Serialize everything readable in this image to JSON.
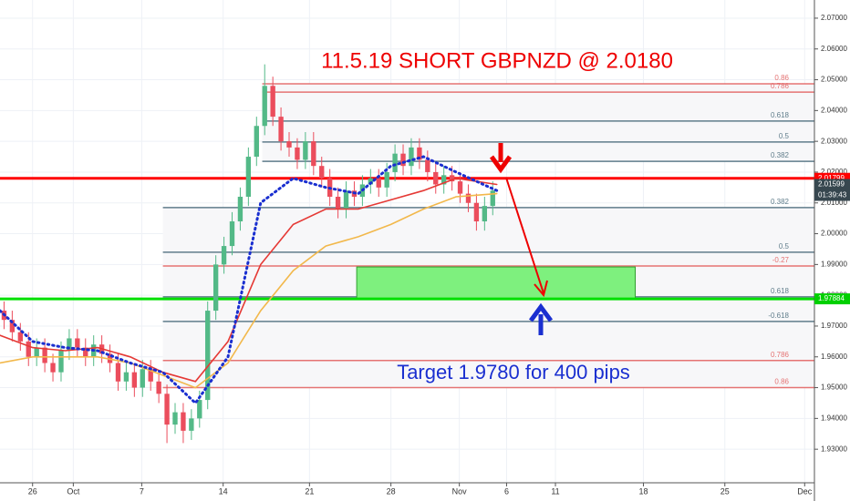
{
  "chart_data": {
    "type": "candlestick",
    "title": "11.5.19 SHORT GBPNZD @ 2.0180",
    "annotation": "Target 1.9780 for 400 pips",
    "up_color": "#53b987",
    "down_color": "#eb4d5c",
    "x": [
      0.25,
      0.75,
      1.25,
      1.75,
      2.25,
      2.75,
      3.25,
      3.75,
      4.25,
      4.75,
      5.25,
      5.75,
      6.25,
      6.75,
      7.25,
      7.75,
      8.25,
      8.75,
      9.25,
      9.75,
      10.25,
      10.75,
      11.25,
      11.75,
      12.25,
      12.75,
      13.25,
      13.75,
      14.25,
      14.75,
      15.25,
      15.75,
      16.25,
      16.75,
      17.25,
      17.75,
      18.25,
      18.75,
      19.25,
      19.75,
      20.25,
      20.75,
      21.25,
      21.75,
      22.25,
      22.75,
      23.25,
      23.75,
      24.25,
      24.75,
      25.25,
      25.75,
      26.25,
      26.75,
      27.25,
      27.75,
      28.25,
      28.75,
      29.25,
      29.75,
      30.25
    ],
    "open": [
      1.975,
      1.972,
      1.968,
      1.965,
      1.96,
      1.963,
      1.958,
      1.955,
      1.962,
      1.966,
      1.963,
      1.96,
      1.964,
      1.961,
      1.958,
      1.952,
      1.955,
      1.95,
      1.956,
      1.952,
      1.948,
      1.938,
      1.942,
      1.936,
      1.94,
      1.946,
      1.975,
      1.99,
      1.996,
      2.004,
      2.012,
      2.025,
      2.035,
      2.048,
      2.038,
      2.03,
      2.028,
      2.024,
      2.03,
      2.022,
      2.018,
      2.012,
      2.008,
      2.014,
      2.012,
      2.016,
      2.018,
      2.015,
      2.02,
      2.026,
      2.022,
      2.028,
      2.024,
      2.02,
      2.016,
      2.019,
      2.017,
      2.013,
      2.01,
      2.004,
      2.009
    ],
    "high": [
      1.978,
      1.975,
      1.971,
      1.968,
      1.966,
      1.966,
      1.961,
      1.965,
      1.969,
      1.969,
      1.966,
      1.967,
      1.967,
      1.964,
      1.961,
      1.958,
      1.958,
      1.959,
      1.959,
      1.955,
      1.951,
      1.945,
      1.945,
      1.943,
      1.949,
      1.978,
      1.993,
      1.999,
      2.007,
      2.015,
      2.028,
      2.038,
      2.055,
      2.051,
      2.041,
      2.033,
      2.031,
      2.033,
      2.033,
      2.025,
      2.021,
      2.015,
      2.017,
      2.017,
      2.019,
      2.021,
      2.021,
      2.023,
      2.029,
      2.029,
      2.031,
      2.031,
      2.027,
      2.023,
      2.022,
      2.022,
      2.02,
      2.016,
      2.013,
      2.012,
      2.017
    ],
    "low": [
      1.969,
      1.965,
      1.962,
      1.957,
      1.957,
      1.955,
      1.952,
      1.952,
      1.959,
      1.96,
      1.957,
      1.957,
      1.958,
      1.955,
      1.949,
      1.949,
      1.947,
      1.947,
      1.949,
      1.945,
      1.932,
      1.935,
      1.932,
      1.933,
      1.937,
      1.943,
      1.972,
      1.987,
      1.993,
      2.001,
      2.009,
      2.022,
      2.032,
      2.035,
      2.027,
      2.025,
      2.021,
      2.021,
      2.019,
      2.015,
      2.009,
      2.005,
      2.005,
      2.009,
      2.009,
      2.013,
      2.012,
      2.012,
      2.017,
      2.019,
      2.019,
      2.021,
      2.017,
      2.013,
      2.013,
      2.014,
      2.01,
      2.007,
      2.001,
      2.001,
      2.006
    ],
    "close": [
      1.972,
      1.968,
      1.965,
      1.96,
      1.963,
      1.958,
      1.955,
      1.962,
      1.966,
      1.963,
      1.96,
      1.964,
      1.961,
      1.958,
      1.952,
      1.955,
      1.95,
      1.956,
      1.952,
      1.948,
      1.938,
      1.942,
      1.936,
      1.94,
      1.946,
      1.975,
      1.99,
      1.996,
      2.004,
      2.012,
      2.025,
      2.035,
      2.048,
      2.038,
      2.03,
      2.028,
      2.024,
      2.03,
      2.022,
      2.018,
      2.012,
      2.008,
      2.014,
      2.012,
      2.016,
      2.018,
      2.015,
      2.02,
      2.026,
      2.022,
      2.028,
      2.024,
      2.02,
      2.016,
      2.019,
      2.017,
      2.013,
      2.01,
      2.004,
      2.009,
      2.014
    ],
    "lines": [
      {
        "color": "#e53935",
        "style": "solid",
        "x": [
          0,
          2,
          4,
          6,
          8,
          10,
          12,
          14,
          16,
          18,
          20,
          22,
          24,
          26,
          28,
          30.5
        ],
        "values": [
          1.967,
          1.963,
          1.962,
          1.963,
          1.96,
          1.955,
          1.952,
          1.965,
          1.99,
          2.003,
          2.008,
          2.008,
          2.011,
          2.014,
          2.018,
          2.016
        ]
      },
      {
        "color": "#f2b84b",
        "style": "solid",
        "x": [
          0,
          2,
          4,
          6,
          8,
          10,
          12,
          14,
          16,
          18,
          20,
          22,
          24,
          26,
          28,
          30.5
        ],
        "values": [
          1.958,
          1.96,
          1.96,
          1.96,
          1.958,
          1.954,
          1.95,
          1.958,
          1.975,
          1.988,
          1.996,
          1.999,
          2.003,
          2.008,
          2.012,
          2.013
        ]
      },
      {
        "color": "#1a2fd0",
        "style": "dotted",
        "x": [
          0,
          2,
          4,
          6,
          8,
          10,
          12,
          14,
          16,
          18,
          20,
          22,
          24,
          26,
          28,
          30.5
        ],
        "values": [
          1.975,
          1.965,
          1.963,
          1.962,
          1.958,
          1.955,
          1.945,
          1.96,
          2.01,
          2.018,
          2.015,
          2.013,
          2.022,
          2.025,
          2.02,
          2.014
        ]
      }
    ],
    "xlim": [
      0,
      50
    ],
    "xticks": [
      {
        "value": 2.0,
        "label": "26"
      },
      {
        "value": 4.5,
        "label": "Oct"
      },
      {
        "value": 8.7,
        "label": "7"
      },
      {
        "value": 13.7,
        "label": "14"
      },
      {
        "value": 19.0,
        "label": "21"
      },
      {
        "value": 24.0,
        "label": "28"
      },
      {
        "value": 28.2,
        "label": "Nov"
      },
      {
        "value": 31.1,
        "label": "6"
      },
      {
        "value": 34.1,
        "label": "11"
      },
      {
        "value": 39.5,
        "label": "18"
      },
      {
        "value": 44.5,
        "label": "25"
      },
      {
        "value": 49.4,
        "label": "Dec"
      }
    ],
    "ylim": [
      1.9191,
      2.0759
    ],
    "yticks": [
      {
        "value": 1.93,
        "label": "1.93000"
      },
      {
        "value": 1.94,
        "label": "1.94000"
      },
      {
        "value": 1.95,
        "label": "1.95000"
      },
      {
        "value": 1.96,
        "label": "1.96000"
      },
      {
        "value": 1.97,
        "label": "1.97000"
      },
      {
        "value": 1.98,
        "label": "1.98000"
      },
      {
        "value": 1.99,
        "label": "1.99000"
      },
      {
        "value": 2.0,
        "label": "2.00000"
      },
      {
        "value": 2.01,
        "label": "2.01000"
      },
      {
        "value": 2.02,
        "label": "2.02000"
      },
      {
        "value": 2.03,
        "label": "2.03000"
      },
      {
        "value": 2.04,
        "label": "2.04000"
      },
      {
        "value": 2.05,
        "label": "2.05000"
      },
      {
        "value": 2.06,
        "label": "2.06000"
      },
      {
        "value": 2.07,
        "label": "2.07000"
      }
    ],
    "grid": true,
    "levels": [
      {
        "value": 2.01799,
        "color": "#ff0000"
      },
      {
        "value": 1.97884,
        "color": "#00e000"
      }
    ],
    "fib_groups": [
      {
        "from_x": 16.1,
        "levels": [
          {
            "ratio": 0.86,
            "value": 2.0487,
            "color": "#e57373"
          },
          {
            "ratio": 0.786,
            "value": 2.046,
            "color": "#e57373"
          },
          {
            "ratio": 0.618,
            "value": 2.0366,
            "color": "#607d8b"
          },
          {
            "ratio": 0.5,
            "value": 2.0298,
            "color": "#607d8b"
          },
          {
            "ratio": 0.382,
            "value": 2.0235,
            "color": "#607d8b"
          }
        ]
      },
      {
        "from_x": 10.0,
        "levels": [
          {
            "ratio": 0.382,
            "value": 2.0085,
            "color": "#607d8b"
          },
          {
            "ratio": 0.5,
            "value": 1.994,
            "color": "#607d8b"
          },
          {
            "ratio": -0.27,
            "value": 1.9895,
            "color": "#e57373"
          },
          {
            "ratio": 0.618,
            "value": 1.9795,
            "color": "#607d8b"
          },
          {
            "ratio": -0.618,
            "value": 1.9715,
            "color": "#607d8b"
          },
          {
            "ratio": 0.786,
            "value": 1.9588,
            "color": "#e57373"
          },
          {
            "ratio": 0.86,
            "value": 1.95,
            "color": "#e57373"
          }
        ]
      }
    ],
    "target_zone": {
      "from_x": 21.9,
      "to_x": 39.0,
      "top": 1.9892,
      "bottom": 1.9789,
      "color": "#7ef07e"
    },
    "price_labels": [
      {
        "value": 2.01799,
        "color": "#ff0000"
      },
      {
        "value": 2.01599,
        "color": "#37474f"
      },
      {
        "value": 1.97884,
        "color": "#00d000"
      }
    ],
    "countdown": "01:39:43"
  }
}
